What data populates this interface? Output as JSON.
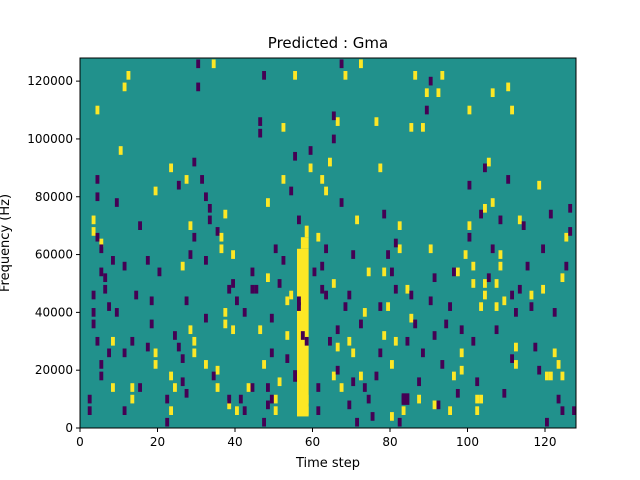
{
  "chart_data": {
    "type": "heatmap",
    "title": "Predicted : Gma",
    "xlabel": "Time step",
    "ylabel": "Frequency (Hz)",
    "xlim": [
      0,
      128
    ],
    "ylim": [
      0,
      128000
    ],
    "x_ticks": [
      0,
      20,
      40,
      60,
      80,
      100,
      120
    ],
    "x_tick_labels": [
      "0",
      "20",
      "40",
      "60",
      "80",
      "100",
      "120"
    ],
    "y_ticks": [
      0,
      20000,
      40000,
      60000,
      80000,
      100000,
      120000
    ],
    "y_tick_labels": [
      "0",
      "20000",
      "40000",
      "60000",
      "80000",
      "100000",
      "120000"
    ],
    "grid": false,
    "legend": "none",
    "colors": {
      "background": "#21918c",
      "high": "#fde725",
      "low": "#440154"
    },
    "value_levels": [
      "low",
      "background",
      "high"
    ],
    "n_time_steps": 128,
    "n_frequency_bins": 128,
    "notes_band": "dense high-value band around time steps 56-59",
    "cells": {
      "high": [
        [
          3,
          72000
        ],
        [
          3,
          68000
        ],
        [
          4,
          110000
        ],
        [
          5,
          64000
        ],
        [
          8,
          30000
        ],
        [
          8,
          14000
        ],
        [
          10,
          96000
        ],
        [
          11,
          118000
        ],
        [
          12,
          122000
        ],
        [
          13,
          10000
        ],
        [
          13,
          14000
        ],
        [
          19,
          82000
        ],
        [
          19,
          26000
        ],
        [
          19,
          22000
        ],
        [
          23,
          90000
        ],
        [
          23,
          18000
        ],
        [
          23,
          6000
        ],
        [
          24,
          14000
        ],
        [
          26,
          56000
        ],
        [
          27,
          86000
        ],
        [
          28,
          70000
        ],
        [
          28,
          34000
        ],
        [
          29,
          30000
        ],
        [
          29,
          26000
        ],
        [
          32,
          22000
        ],
        [
          34,
          126000
        ],
        [
          35,
          20000
        ],
        [
          35,
          14000
        ],
        [
          36,
          66000
        ],
        [
          36,
          62000
        ],
        [
          37,
          40000
        ],
        [
          37,
          36000
        ],
        [
          37,
          74000
        ],
        [
          38,
          8000
        ],
        [
          39,
          34000
        ],
        [
          39,
          60000
        ],
        [
          40,
          6000
        ],
        [
          43,
          14000
        ],
        [
          46,
          34000
        ],
        [
          47,
          22000
        ],
        [
          48,
          52000
        ],
        [
          48,
          78000
        ],
        [
          50,
          10000
        ],
        [
          50,
          6000
        ],
        [
          51,
          16000
        ],
        [
          52,
          104000
        ],
        [
          52,
          86000
        ],
        [
          53,
          32000
        ],
        [
          53,
          44000
        ],
        [
          54,
          46000
        ],
        [
          55,
          122000
        ],
        [
          57,
          20000
        ],
        [
          57,
          14000
        ],
        [
          58,
          10000
        ],
        [
          58,
          6000
        ],
        [
          59,
          90000
        ],
        [
          61,
          66000
        ],
        [
          62,
          86000
        ],
        [
          63,
          82000
        ],
        [
          64,
          92000
        ],
        [
          65,
          50000
        ],
        [
          65,
          18000
        ],
        [
          66,
          106000
        ],
        [
          66,
          28000
        ],
        [
          67,
          14000
        ],
        [
          68,
          122000
        ],
        [
          69,
          30000
        ],
        [
          70,
          26000
        ],
        [
          71,
          72000
        ],
        [
          72,
          18000
        ],
        [
          72,
          126000
        ],
        [
          73,
          40000
        ],
        [
          74,
          54000
        ],
        [
          76,
          106000
        ],
        [
          77,
          90000
        ],
        [
          78,
          32000
        ],
        [
          78,
          54000
        ],
        [
          79,
          42000
        ],
        [
          80,
          22000
        ],
        [
          80,
          4000
        ],
        [
          81,
          30000
        ],
        [
          82,
          62000
        ],
        [
          82,
          70000
        ],
        [
          83,
          6000
        ],
        [
          84,
          48000
        ],
        [
          85,
          104000
        ],
        [
          85,
          38000
        ],
        [
          86,
          122000
        ],
        [
          87,
          10000
        ],
        [
          88,
          104000
        ],
        [
          89,
          116000
        ],
        [
          90,
          62000
        ],
        [
          91,
          8000
        ],
        [
          92,
          116000
        ],
        [
          93,
          122000
        ],
        [
          95,
          6000
        ],
        [
          96,
          18000
        ],
        [
          97,
          54000
        ],
        [
          98,
          20000
        ],
        [
          98,
          26000
        ],
        [
          99,
          60000
        ],
        [
          100,
          110000
        ],
        [
          100,
          70000
        ],
        [
          101,
          50000
        ],
        [
          101,
          56000
        ],
        [
          102,
          10000
        ],
        [
          102,
          6000
        ],
        [
          103,
          10000
        ],
        [
          103,
          42000
        ],
        [
          104,
          76000
        ],
        [
          104,
          46000
        ],
        [
          104,
          50000
        ],
        [
          105,
          92000
        ],
        [
          106,
          116000
        ],
        [
          106,
          78000
        ],
        [
          107,
          50000
        ],
        [
          107,
          42000
        ],
        [
          108,
          56000
        ],
        [
          108,
          60000
        ],
        [
          109,
          44000
        ],
        [
          110,
          118000
        ],
        [
          111,
          110000
        ],
        [
          112,
          28000
        ],
        [
          112,
          22000
        ],
        [
          113,
          72000
        ],
        [
          116,
          46000
        ],
        [
          118,
          84000
        ],
        [
          119,
          48000
        ],
        [
          120,
          18000
        ],
        [
          121,
          18000
        ],
        [
          122,
          26000
        ],
        [
          123,
          22000
        ],
        [
          124,
          18000
        ],
        [
          124,
          52000
        ],
        [
          125,
          66000
        ]
      ],
      "low": [
        [
          2,
          10000
        ],
        [
          2,
          6000
        ],
        [
          3,
          40000
        ],
        [
          3,
          46000
        ],
        [
          3,
          36000
        ],
        [
          4,
          86000
        ],
        [
          4,
          80000
        ],
        [
          4,
          66000
        ],
        [
          4,
          30000
        ],
        [
          5,
          22000
        ],
        [
          5,
          18000
        ],
        [
          5,
          54000
        ],
        [
          5,
          62000
        ],
        [
          6,
          48000
        ],
        [
          6,
          52000
        ],
        [
          7,
          42000
        ],
        [
          7,
          26000
        ],
        [
          8,
          58000
        ],
        [
          9,
          78000
        ],
        [
          9,
          40000
        ],
        [
          11,
          26000
        ],
        [
          11,
          6000
        ],
        [
          11,
          56000
        ],
        [
          13,
          30000
        ],
        [
          14,
          46000
        ],
        [
          15,
          70000
        ],
        [
          15,
          14000
        ],
        [
          17,
          28000
        ],
        [
          17,
          58000
        ],
        [
          18,
          36000
        ],
        [
          18,
          44000
        ],
        [
          20,
          54000
        ],
        [
          22,
          2000
        ],
        [
          22,
          10000
        ],
        [
          24,
          32000
        ],
        [
          25,
          84000
        ],
        [
          25,
          28000
        ],
        [
          26,
          24000
        ],
        [
          26,
          16000
        ],
        [
          27,
          12000
        ],
        [
          27,
          44000
        ],
        [
          28,
          60000
        ],
        [
          29,
          66000
        ],
        [
          29,
          92000
        ],
        [
          30,
          118000
        ],
        [
          30,
          126000
        ],
        [
          31,
          86000
        ],
        [
          32,
          58000
        ],
        [
          32,
          38000
        ],
        [
          32,
          80000
        ],
        [
          33,
          72000
        ],
        [
          33,
          76000
        ],
        [
          34,
          18000
        ],
        [
          35,
          68000
        ],
        [
          38,
          10000
        ],
        [
          38,
          48000
        ],
        [
          39,
          50000
        ],
        [
          40,
          44000
        ],
        [
          41,
          10000
        ],
        [
          42,
          6000
        ],
        [
          42,
          40000
        ],
        [
          44,
          14000
        ],
        [
          44,
          54000
        ],
        [
          44,
          48000
        ],
        [
          45,
          48000
        ],
        [
          46,
          102000
        ],
        [
          46,
          106000
        ],
        [
          47,
          122000
        ],
        [
          47,
          2000
        ],
        [
          48,
          8000
        ],
        [
          48,
          14000
        ],
        [
          49,
          10000
        ],
        [
          49,
          26000
        ],
        [
          49,
          38000
        ],
        [
          50,
          62000
        ],
        [
          51,
          50000
        ],
        [
          52,
          58000
        ],
        [
          53,
          24000
        ],
        [
          54,
          82000
        ],
        [
          55,
          94000
        ],
        [
          56,
          72000
        ],
        [
          56,
          42000
        ],
        [
          56,
          44000
        ],
        [
          57,
          32000
        ],
        [
          58,
          30000
        ],
        [
          59,
          96000
        ],
        [
          60,
          54000
        ],
        [
          61,
          6000
        ],
        [
          61,
          14000
        ],
        [
          62,
          56000
        ],
        [
          62,
          48000
        ],
        [
          63,
          62000
        ],
        [
          63,
          46000
        ],
        [
          64,
          30000
        ],
        [
          65,
          108000
        ],
        [
          65,
          100000
        ],
        [
          66,
          20000
        ],
        [
          66,
          34000
        ],
        [
          67,
          126000
        ],
        [
          67,
          78000
        ],
        [
          68,
          42000
        ],
        [
          69,
          46000
        ],
        [
          69,
          8000
        ],
        [
          70,
          60000
        ],
        [
          70,
          16000
        ],
        [
          71,
          2000
        ],
        [
          72,
          36000
        ],
        [
          73,
          14000
        ],
        [
          74,
          10000
        ],
        [
          75,
          4000
        ],
        [
          76,
          18000
        ],
        [
          77,
          42000
        ],
        [
          77,
          26000
        ],
        [
          78,
          74000
        ],
        [
          79,
          60000
        ],
        [
          80,
          54000
        ],
        [
          81,
          64000
        ],
        [
          81,
          48000
        ],
        [
          82,
          2000
        ],
        [
          83,
          10000
        ],
        [
          84,
          30000
        ],
        [
          85,
          46000
        ],
        [
          86,
          36000
        ],
        [
          87,
          16000
        ],
        [
          88,
          26000
        ],
        [
          89,
          110000
        ],
        [
          90,
          120000
        ],
        [
          90,
          44000
        ],
        [
          91,
          32000
        ],
        [
          91,
          52000
        ],
        [
          92,
          8000
        ],
        [
          93,
          22000
        ],
        [
          94,
          36000
        ],
        [
          95,
          42000
        ],
        [
          96,
          54000
        ],
        [
          97,
          12000
        ],
        [
          98,
          34000
        ],
        [
          100,
          66000
        ],
        [
          100,
          84000
        ],
        [
          101,
          30000
        ],
        [
          102,
          16000
        ],
        [
          103,
          74000
        ],
        [
          104,
          90000
        ],
        [
          105,
          52000
        ],
        [
          106,
          62000
        ],
        [
          107,
          34000
        ],
        [
          108,
          72000
        ],
        [
          109,
          12000
        ],
        [
          110,
          86000
        ],
        [
          111,
          24000
        ],
        [
          111,
          46000
        ],
        [
          112,
          40000
        ],
        [
          113,
          48000
        ],
        [
          114,
          70000
        ],
        [
          115,
          56000
        ],
        [
          116,
          42000
        ],
        [
          117,
          28000
        ],
        [
          118,
          20000
        ],
        [
          119,
          62000
        ],
        [
          120,
          2000
        ],
        [
          121,
          74000
        ],
        [
          122,
          40000
        ],
        [
          123,
          10000
        ],
        [
          124,
          6000
        ],
        [
          125,
          56000
        ],
        [
          126,
          76000
        ],
        [
          126,
          68000
        ],
        [
          127,
          6000
        ]
      ],
      "high_band": [
        {
          "x_start": 56,
          "x_end": 59,
          "y_start": 4000,
          "y_end": 62000
        },
        {
          "x_start": 57,
          "x_end": 59,
          "y_start": 62000,
          "y_end": 66000
        },
        {
          "x_start": 58,
          "x_end": 59,
          "y_start": 66000,
          "y_end": 70000
        }
      ],
      "low_band": [
        {
          "x_start": 55,
          "x_end": 56,
          "y_start": 16000,
          "y_end": 20000
        },
        {
          "x_start": 83,
          "x_end": 85,
          "y_start": 8000,
          "y_end": 12000
        }
      ]
    }
  }
}
